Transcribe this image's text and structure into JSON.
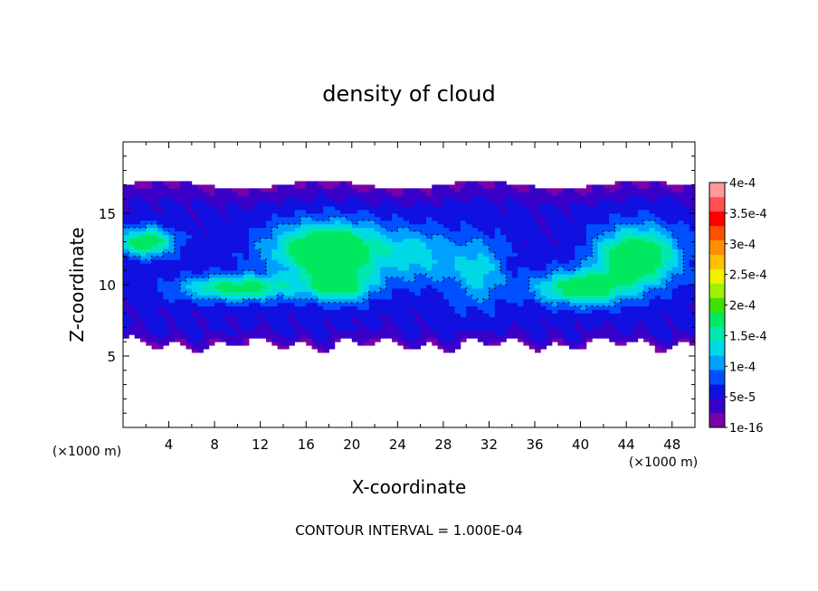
{
  "chart_data": {
    "type": "heatmap",
    "title": "density of cloud",
    "xlabel": "X-coordinate",
    "ylabel": "Z-coordinate",
    "x_unit_left": "(×1000 m)",
    "x_unit_right": "(×1000 m)",
    "xlim": [
      0,
      50
    ],
    "ylim": [
      0,
      20
    ],
    "xticks": [
      4,
      8,
      12,
      16,
      20,
      24,
      28,
      32,
      36,
      40,
      44,
      48
    ],
    "yticks": [
      5,
      10,
      15
    ],
    "footer": "CONTOUR INTERVAL = 1.000E-04",
    "colorbar": {
      "labels": [
        "4e-4",
        "3.5e-4",
        "3e-4",
        "2.5e-4",
        "2e-4",
        "1.5e-4",
        "1e-4",
        "5e-5",
        "1e-16"
      ],
      "levels": [
        {
          "value": 1e-16,
          "color": "#7a00a8"
        },
        {
          "value": 2.5e-05,
          "color": "#3a00c8"
        },
        {
          "value": 5e-05,
          "color": "#1010e0"
        },
        {
          "value": 7.5e-05,
          "color": "#0050ff"
        },
        {
          "value": 0.0001,
          "color": "#00a0ff"
        },
        {
          "value": 0.000125,
          "color": "#00d8e8"
        },
        {
          "value": 0.00015,
          "color": "#00e8b0"
        },
        {
          "value": 0.000175,
          "color": "#00e860"
        },
        {
          "value": 0.0002,
          "color": "#40e000"
        },
        {
          "value": 0.000225,
          "color": "#a0f000"
        },
        {
          "value": 0.00025,
          "color": "#f0f000"
        },
        {
          "value": 0.000275,
          "color": "#ffc000"
        },
        {
          "value": 0.0003,
          "color": "#ff9000"
        },
        {
          "value": 0.000325,
          "color": "#ff5000"
        },
        {
          "value": 0.00035,
          "color": "#ff0000"
        },
        {
          "value": 0.000375,
          "color": "#ff5050"
        },
        {
          "value": 0.0004,
          "color": "#ff9898"
        }
      ]
    },
    "field": {
      "cloud_base_km": 5.8,
      "cloud_top_km": 17.0,
      "max_density": 0.00019,
      "blobs": [
        {
          "x": 18,
          "z": 12.5,
          "amp": 0.00019,
          "sx": 5,
          "sz": 1.8
        },
        {
          "x": 10,
          "z": 9.8,
          "amp": 0.00014,
          "sx": 5,
          "sz": 0.9
        },
        {
          "x": 19,
          "z": 10,
          "amp": 0.00013,
          "sx": 3,
          "sz": 1.2
        },
        {
          "x": 45,
          "z": 12,
          "amp": 0.00018,
          "sx": 3.5,
          "sz": 2
        },
        {
          "x": 40,
          "z": 9.8,
          "amp": 0.00015,
          "sx": 4,
          "sz": 1.2
        },
        {
          "x": 2,
          "z": 13,
          "amp": 0.00015,
          "sx": 2.5,
          "sz": 1
        },
        {
          "x": 31,
          "z": 11,
          "amp": 8e-05,
          "sx": 2.5,
          "sz": 2.5
        },
        {
          "x": 26,
          "z": 12,
          "amp": 7e-05,
          "sx": 3,
          "sz": 2
        }
      ]
    }
  }
}
